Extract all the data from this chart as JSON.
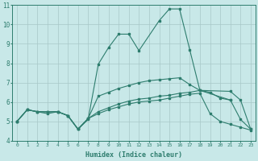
{
  "xlabel": "Humidex (Indice chaleur)",
  "xlim": [
    -0.5,
    23.5
  ],
  "ylim": [
    4,
    11
  ],
  "xticks": [
    0,
    1,
    2,
    3,
    4,
    5,
    6,
    7,
    8,
    9,
    10,
    11,
    12,
    13,
    14,
    15,
    16,
    17,
    18,
    19,
    20,
    21,
    22,
    23
  ],
  "yticks": [
    4,
    5,
    6,
    7,
    8,
    9,
    10,
    11
  ],
  "bg_color": "#c8e8e8",
  "line_color": "#2e7d6e",
  "grid_color": "#a8c8c8",
  "line1_x": [
    0,
    1,
    2,
    3,
    4,
    5,
    6,
    7,
    8,
    9,
    10,
    11,
    12,
    14,
    15,
    16,
    17,
    18,
    21
  ],
  "line1_y": [
    5.0,
    5.6,
    5.5,
    5.5,
    5.5,
    5.3,
    4.6,
    5.1,
    7.95,
    8.8,
    9.5,
    9.5,
    8.65,
    10.2,
    10.8,
    10.8,
    8.7,
    6.6,
    6.1
  ],
  "line2_x": [
    0,
    1,
    2,
    3,
    4,
    5,
    6,
    7,
    8,
    9,
    10,
    11,
    12,
    13,
    14,
    15,
    16,
    17,
    18,
    19,
    20,
    21,
    22,
    23
  ],
  "line2_y": [
    5.0,
    5.6,
    5.5,
    5.5,
    5.5,
    5.3,
    4.6,
    5.15,
    5.5,
    5.7,
    5.9,
    6.05,
    6.15,
    6.2,
    6.3,
    6.35,
    6.45,
    6.5,
    6.6,
    6.5,
    6.2,
    6.1,
    5.1,
    4.6
  ],
  "line3_x": [
    0,
    1,
    2,
    3,
    4,
    5,
    6,
    7,
    8,
    9,
    10,
    11,
    12,
    13,
    14,
    15,
    16,
    17,
    18,
    19,
    20,
    21,
    22,
    23
  ],
  "line3_y": [
    5.0,
    5.6,
    5.5,
    5.5,
    5.5,
    5.3,
    4.6,
    5.15,
    5.4,
    5.6,
    5.75,
    5.9,
    6.0,
    6.05,
    6.1,
    6.2,
    6.3,
    6.4,
    6.45,
    5.4,
    5.0,
    4.85,
    4.7,
    4.55
  ],
  "line4_x": [
    0,
    1,
    2,
    3,
    4,
    5,
    6,
    7,
    8,
    9,
    10,
    11,
    12,
    13,
    14,
    15,
    16,
    17,
    18,
    21,
    22,
    23
  ],
  "line4_y": [
    5.0,
    5.6,
    5.5,
    5.4,
    5.5,
    5.3,
    4.6,
    5.15,
    6.3,
    6.5,
    6.7,
    6.85,
    7.0,
    7.1,
    7.15,
    7.2,
    7.25,
    6.9,
    6.6,
    6.55,
    6.1,
    4.6
  ]
}
